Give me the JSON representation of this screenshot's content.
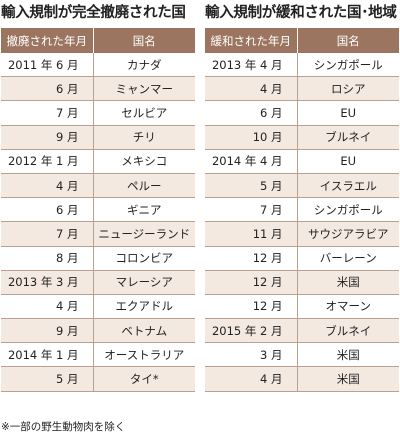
{
  "left_panel": {
    "title": "輸入規制が完全撤廃された国",
    "col_date": "撤廃された年月",
    "col_name": "国名",
    "rows": [
      {
        "date": "2011 年 6 月",
        "name": "カナダ"
      },
      {
        "date": "6 月",
        "name": "ミャンマー"
      },
      {
        "date": "7 月",
        "name": "セルビア"
      },
      {
        "date": "9 月",
        "name": "チリ"
      },
      {
        "date": "2012 年 1 月",
        "name": "メキシコ"
      },
      {
        "date": "4 月",
        "name": "ペルー"
      },
      {
        "date": "6 月",
        "name": "ギニア"
      },
      {
        "date": "7 月",
        "name": "ニュージーランド"
      },
      {
        "date": "8 月",
        "name": "コロンビア"
      },
      {
        "date": "2013 年 3 月",
        "name": "マレーシア"
      },
      {
        "date": "4 月",
        "name": "エクアドル"
      },
      {
        "date": "9 月",
        "name": "ベトナム"
      },
      {
        "date": "2014 年 1 月",
        "name": "オーストラリア"
      },
      {
        "date": "5 月",
        "name": "タイ*"
      }
    ]
  },
  "right_panel": {
    "title": "輸入規制が緩和された国･地域",
    "col_date": "緩和された年月",
    "col_name": "国名",
    "rows": [
      {
        "date": "2013 年 4 月",
        "name": "シンガポール"
      },
      {
        "date": "4 月",
        "name": "ロシア"
      },
      {
        "date": "6 月",
        "name": "EU"
      },
      {
        "date": "10 月",
        "name": "ブルネイ"
      },
      {
        "date": "2014 年 4 月",
        "name": "EU"
      },
      {
        "date": "5 月",
        "name": "イスラエル"
      },
      {
        "date": "7 月",
        "name": "シンガポール"
      },
      {
        "date": "11 月",
        "name": "サウジアラビア"
      },
      {
        "date": "12 月",
        "name": "バーレーン"
      },
      {
        "date": "12 月",
        "name": "米国"
      },
      {
        "date": "12 月",
        "name": "オマーン"
      },
      {
        "date": "2015 年 2 月",
        "name": "ブルネイ"
      },
      {
        "date": "3 月",
        "name": "米国"
      },
      {
        "date": "4 月",
        "name": "米国"
      }
    ]
  },
  "footnote": "※一部の野生動物肉を除く",
  "colors": {
    "header_bg": "#9c7560",
    "alt_row_bg": "#f4e9e1",
    "rule": "#b9a192"
  }
}
